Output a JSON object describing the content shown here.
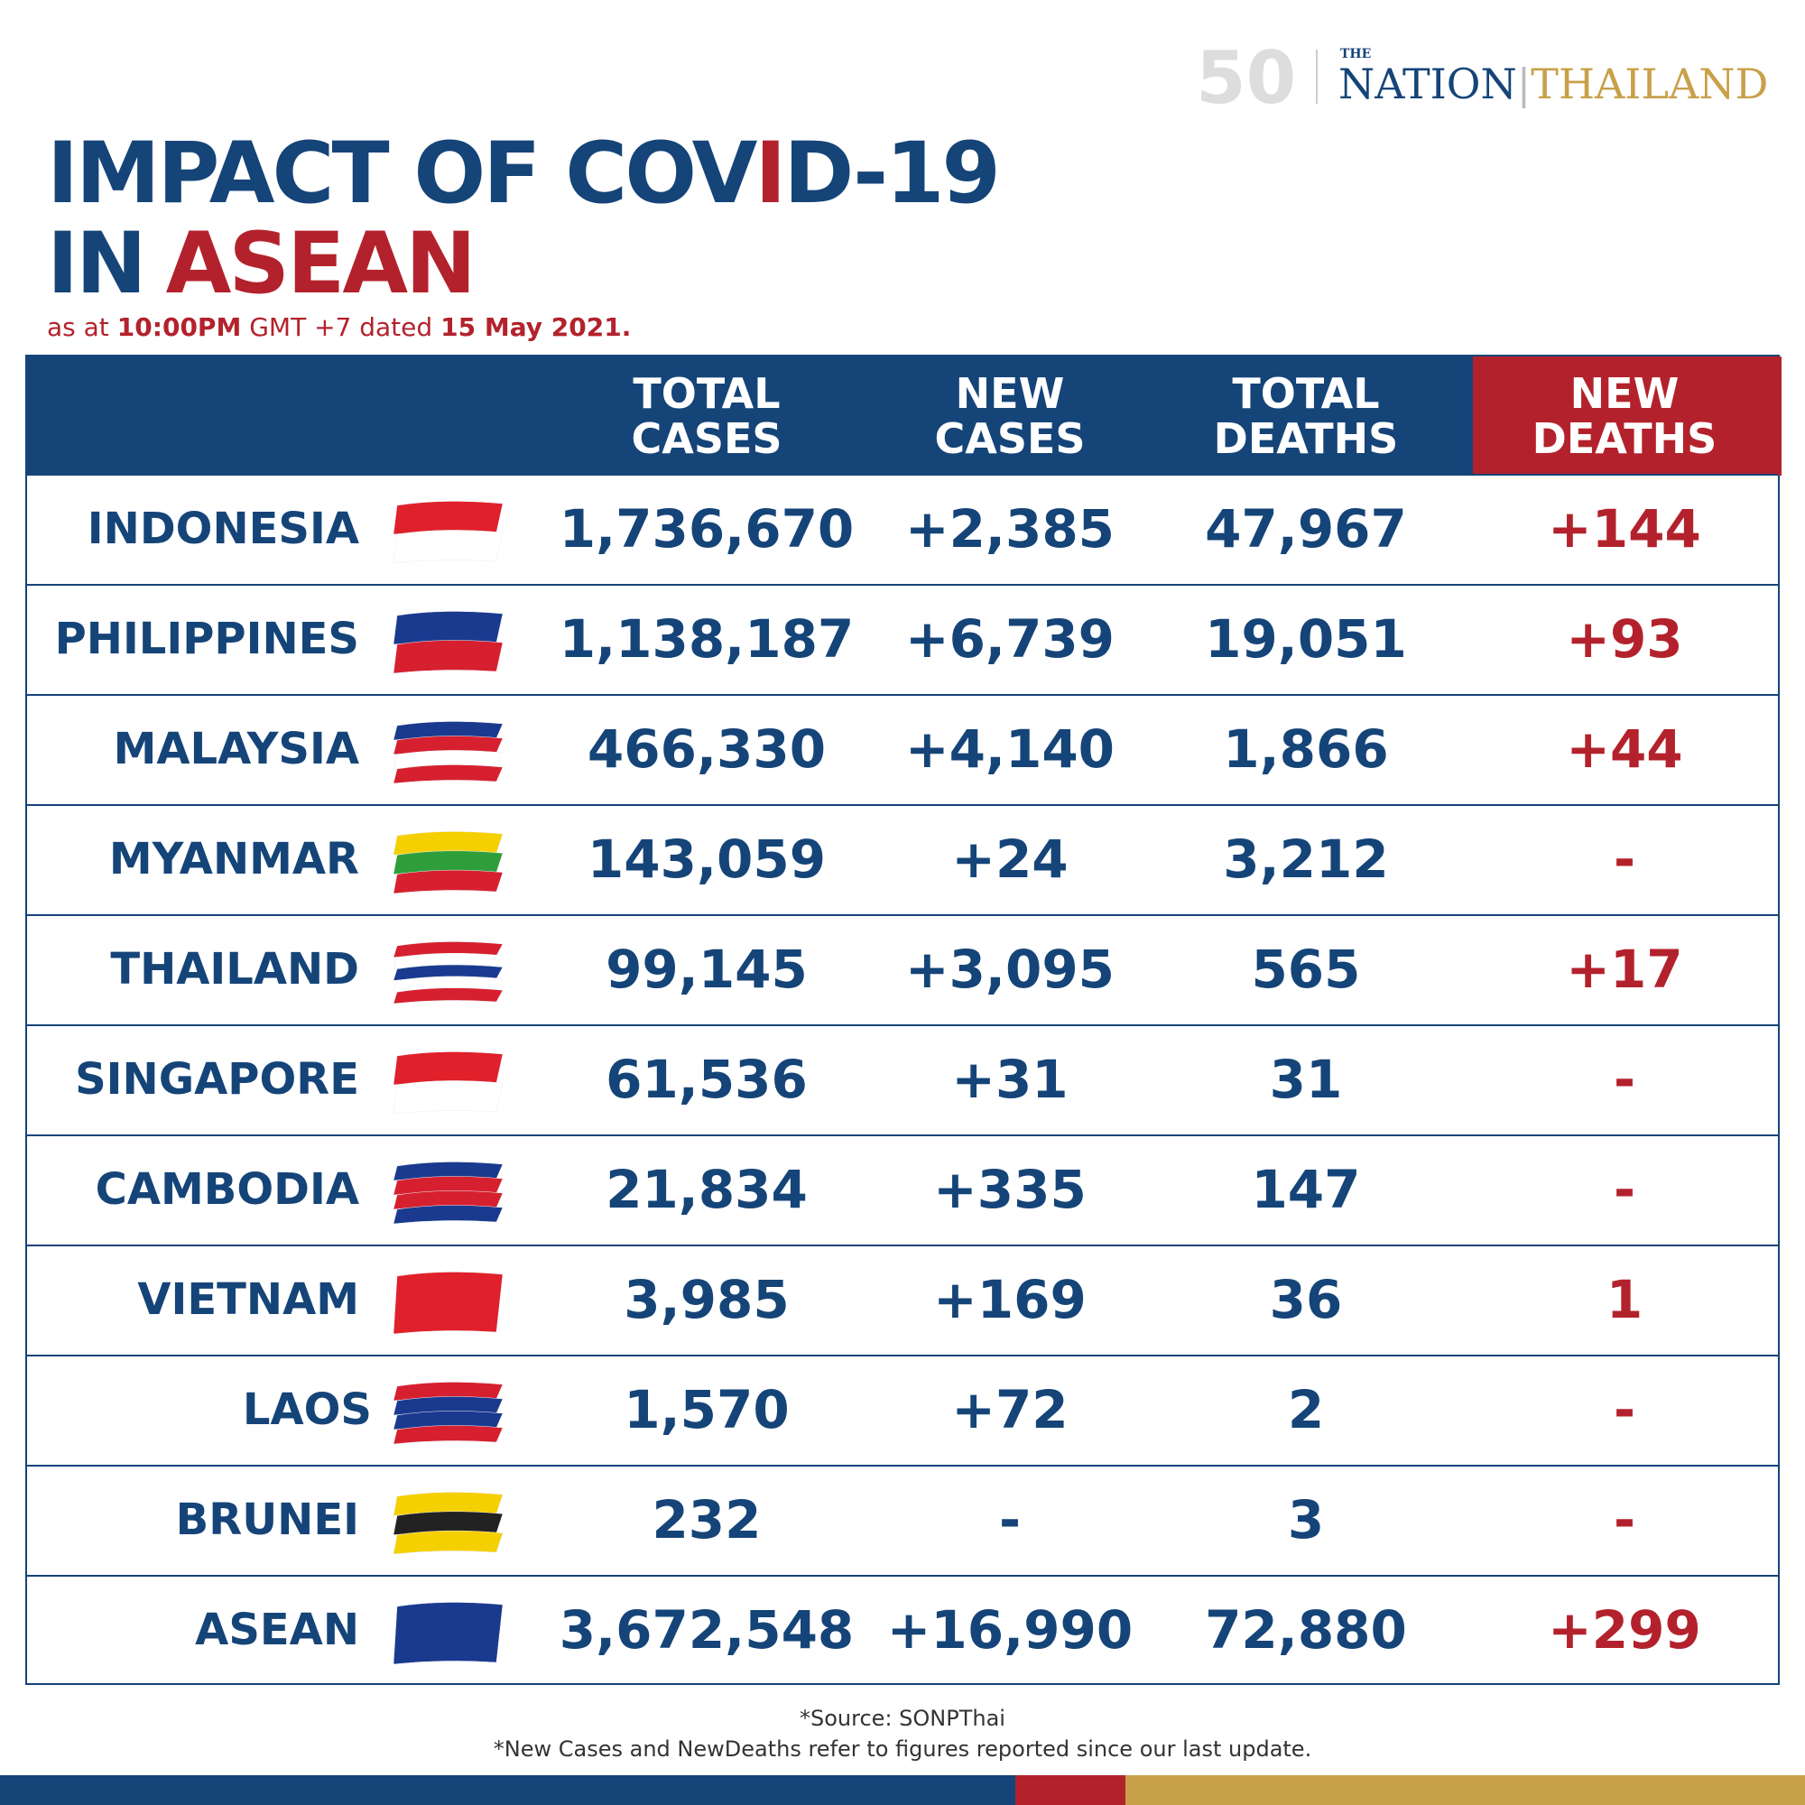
{
  "logo": {
    "anniversary": "50",
    "the": "THE",
    "nation": "NATION",
    "thailand": "THAILAND"
  },
  "title": {
    "line1": [
      "IMPACT OF COV",
      "I",
      "D-19"
    ],
    "line2": [
      "IN",
      "ASEAN"
    ]
  },
  "subtitle": [
    "as at",
    "10:00PM",
    "GMT +7 dated",
    "15 May 2021."
  ],
  "table": {
    "columns": [
      "TOTAL\nCASES",
      "NEW\nCASES",
      "TOTAL\nDEATHS",
      "NEW\nDEATHS"
    ],
    "rows": [
      {
        "country": "INDONESIA",
        "cells": [
          "1,736,670",
          "+2,385",
          "47,967",
          "+144"
        ]
      },
      {
        "country": "PHILIPPINES",
        "cells": [
          "1,138,187",
          "+6,739",
          "19,051",
          "+93"
        ]
      },
      {
        "country": "MALAYSIA",
        "cells": [
          "466,330",
          "+4,140",
          "1,866",
          "+44"
        ]
      },
      {
        "country": "MYANMAR",
        "cells": [
          "143,059",
          "+24",
          "3,212",
          "-"
        ]
      },
      {
        "country": "THAILAND",
        "cells": [
          "99,145",
          "+3,095",
          "565",
          "+17"
        ]
      },
      {
        "country": "SINGAPORE",
        "cells": [
          "61,536",
          "+31",
          "31",
          "-"
        ]
      },
      {
        "country": "CAMBODIA",
        "cells": [
          "21,834",
          "+335",
          "147",
          "-"
        ]
      },
      {
        "country": "VIETNAM",
        "cells": [
          "3,985",
          "+169",
          "36",
          "1"
        ]
      },
      {
        "country": "LAOS",
        "cells": [
          "1,570",
          "+72",
          "2",
          "-"
        ]
      },
      {
        "country": "BRUNEI",
        "cells": [
          "232",
          "-",
          "3",
          "-"
        ]
      },
      {
        "country": "ASEAN",
        "cells": [
          "3,672,548",
          "+16,990",
          "72,880",
          "+299"
        ]
      }
    ]
  },
  "footer": [
    "*Source: SONPThai",
    "*New Cases and NewDeaths refer to figures reported since our last update."
  ]
}
